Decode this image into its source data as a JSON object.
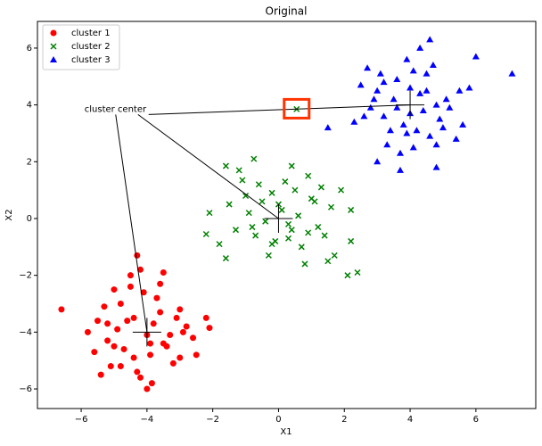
{
  "chart_data": {
    "type": "scatter",
    "title": "Original",
    "xlabel": "X1",
    "ylabel": "X2",
    "xlim": [
      -7.33,
      7.82
    ],
    "ylim": [
      -6.69,
      6.94
    ],
    "xticks": [
      {
        "value": -6,
        "label": "−6"
      },
      {
        "value": -4,
        "label": "−4"
      },
      {
        "value": -2,
        "label": "−2"
      },
      0,
      2,
      4,
      6
    ],
    "yticks": [
      {
        "value": -6,
        "label": "−6"
      },
      {
        "value": -4,
        "label": "−4"
      },
      {
        "value": -2,
        "label": "−2"
      },
      0,
      2,
      4,
      6
    ],
    "legend": "upper left",
    "series": [
      {
        "name": "cluster 1",
        "color": "#ff0000",
        "marker": "circle",
        "x": [
          -6.6,
          -4.3,
          -4.2,
          -2.2,
          -2.1,
          -4.0,
          -3.85,
          -5.4,
          -5.8,
          -2.5,
          -3.0,
          -3.5,
          -4.5,
          -5.0,
          -3.0,
          -2.8,
          -4.8,
          -4.6,
          -3.7,
          -3.9,
          -5.2,
          -5.1,
          -4.4,
          -3.3,
          -3.6,
          -4.1,
          -4.9,
          -5.5,
          -3.2,
          -4.7,
          -3.4,
          -4.3,
          -5.3,
          -2.6,
          -3.8,
          -4.0,
          -5.6,
          -4.5,
          -3.1,
          -4.2,
          -5.0,
          -3.6,
          -4.8,
          -2.9,
          -4.4,
          -3.9,
          -5.2,
          -3.5
        ],
        "values": [
          -3.2,
          -1.3,
          -1.8,
          -3.5,
          -3.85,
          -6.0,
          -5.8,
          -5.5,
          -4.0,
          -4.8,
          -4.9,
          -1.9,
          -2.0,
          -2.5,
          -3.2,
          -3.8,
          -3.0,
          -3.6,
          -2.8,
          -4.4,
          -4.3,
          -5.2,
          -4.9,
          -4.1,
          -3.3,
          -2.6,
          -3.9,
          -3.6,
          -5.1,
          -4.6,
          -4.5,
          -5.4,
          -3.1,
          -4.2,
          -3.7,
          -4.1,
          -4.7,
          -2.4,
          -3.5,
          -5.6,
          -4.5,
          -2.3,
          -5.2,
          -4.0,
          -3.5,
          -4.8,
          -3.7,
          -4.4
        ]
      },
      {
        "name": "cluster 2",
        "color": "#008000",
        "marker": "x",
        "x": [
          -2.2,
          -2.1,
          -1.6,
          -0.75,
          -1.1,
          -1.6,
          -0.3,
          0.4,
          0.55,
          2.2,
          2.4,
          2.1,
          1.5,
          0.8,
          -0.9,
          1.0,
          -0.5,
          0.3,
          1.2,
          -0.2,
          0.6,
          -1.3,
          0.9,
          1.6,
          -0.7,
          0.1,
          0.5,
          -1.0,
          1.3,
          -0.4,
          0.7,
          1.9,
          -0.1,
          0.2,
          -0.8,
          1.1,
          -1.8,
          0.4,
          2.2,
          -0.6,
          1.7,
          0.0,
          0.9,
          -1.5,
          0.3,
          1.4,
          -0.2,
          -1.2
        ],
        "values": [
          -0.55,
          0.2,
          1.85,
          2.1,
          1.35,
          -1.4,
          -1.3,
          1.85,
          3.85,
          -0.8,
          -1.9,
          -2.0,
          -1.5,
          -1.6,
          0.2,
          0.7,
          0.6,
          -0.7,
          -0.3,
          0.9,
          0.1,
          -0.4,
          -0.5,
          0.4,
          -0.6,
          0.3,
          1.0,
          0.8,
          1.1,
          -0.1,
          -1.0,
          1.0,
          -0.8,
          1.3,
          -0.3,
          0.6,
          -0.9,
          -0.4,
          0.3,
          1.2,
          -1.3,
          0.5,
          1.5,
          0.5,
          -0.2,
          -0.6,
          -0.9,
          1.7
        ]
      },
      {
        "name": "cluster 3",
        "color": "#0000ff",
        "marker": "triangle",
        "x": [
          7.1,
          4.6,
          4.3,
          6.0,
          2.5,
          1.5,
          2.8,
          3.0,
          4.8,
          3.7,
          5.0,
          5.6,
          2.7,
          3.9,
          4.5,
          5.5,
          3.5,
          4.0,
          3.2,
          4.2,
          4.8,
          3.0,
          3.8,
          4.4,
          5.2,
          3.3,
          4.6,
          2.3,
          3.6,
          5.1,
          4.1,
          3.1,
          4.9,
          2.9,
          4.3,
          3.9,
          5.4,
          4.7,
          3.4,
          4.0,
          2.6,
          5.8,
          3.7,
          4.5,
          3.2,
          4.8,
          4.1,
          3.6
        ],
        "values": [
          5.1,
          6.3,
          6.0,
          5.7,
          4.7,
          3.2,
          3.9,
          2.0,
          1.8,
          1.7,
          3.2,
          3.3,
          5.3,
          5.6,
          5.1,
          4.5,
          4.2,
          4.6,
          3.6,
          3.1,
          4.0,
          4.5,
          3.3,
          3.8,
          3.9,
          2.6,
          2.9,
          3.4,
          4.9,
          4.2,
          2.5,
          5.1,
          3.5,
          4.2,
          4.4,
          3.0,
          2.8,
          5.4,
          3.1,
          3.7,
          3.6,
          4.6,
          2.3,
          4.5,
          4.8,
          2.6,
          5.2,
          3.9
        ]
      }
    ],
    "highlight": {
      "series": 1,
      "index": 8,
      "color": "#ff3300"
    },
    "centers": {
      "x": [
        -4,
        0,
        4
      ],
      "y": [
        -4,
        0,
        4
      ]
    },
    "annotation": {
      "text": "cluster center",
      "x": -5.9,
      "y": 3.85
    }
  }
}
